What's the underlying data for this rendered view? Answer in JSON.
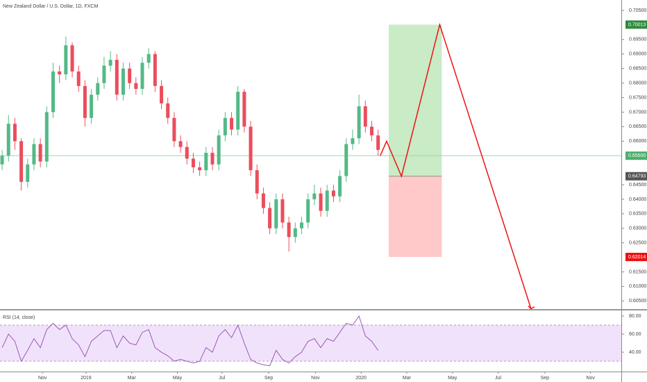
{
  "chart_data": [
    {
      "type": "candlestick",
      "title": "New Zealand Dollar / U.S. Dollar, 1D, FXCM",
      "x": [
        2,
        8,
        14,
        20,
        26,
        32,
        38,
        44,
        50,
        56,
        62,
        68,
        74,
        80,
        86,
        92,
        98,
        104,
        110,
        116,
        122,
        128,
        134,
        140,
        146,
        152,
        158,
        164,
        170,
        176,
        182,
        188,
        194,
        200,
        206,
        212,
        218,
        224,
        230,
        236,
        242,
        248,
        254,
        260,
        266,
        272,
        278,
        284,
        290,
        296,
        302,
        308,
        314,
        320,
        326,
        332,
        338,
        344,
        350,
        356
      ],
      "open": [
        0.652,
        0.655,
        0.666,
        0.66,
        0.646,
        0.652,
        0.659,
        0.653,
        0.67,
        0.684,
        0.683,
        0.693,
        0.684,
        0.679,
        0.668,
        0.676,
        0.68,
        0.686,
        0.688,
        0.676,
        0.685,
        0.68,
        0.678,
        0.687,
        0.69,
        0.679,
        0.673,
        0.668,
        0.66,
        0.658,
        0.654,
        0.651,
        0.65,
        0.656,
        0.652,
        0.662,
        0.668,
        0.664,
        0.677,
        0.665,
        0.65,
        0.642,
        0.637,
        0.63,
        0.64,
        0.632,
        0.627,
        0.63,
        0.632,
        0.64,
        0.642,
        0.636,
        0.643,
        0.641,
        0.648,
        0.659,
        0.661,
        0.672,
        0.665,
        0.662
      ],
      "high": [
        0.657,
        0.669,
        0.668,
        0.661,
        0.654,
        0.661,
        0.661,
        0.672,
        0.687,
        0.686,
        0.696,
        0.694,
        0.686,
        0.681,
        0.678,
        0.682,
        0.689,
        0.691,
        0.69,
        0.687,
        0.687,
        0.682,
        0.689,
        0.692,
        0.691,
        0.681,
        0.675,
        0.67,
        0.662,
        0.66,
        0.656,
        0.653,
        0.658,
        0.658,
        0.664,
        0.67,
        0.67,
        0.679,
        0.678,
        0.667,
        0.652,
        0.644,
        0.639,
        0.642,
        0.642,
        0.634,
        0.632,
        0.634,
        0.642,
        0.645,
        0.644,
        0.645,
        0.645,
        0.65,
        0.661,
        0.664,
        0.676,
        0.674,
        0.667,
        0.664
      ],
      "low": [
        0.65,
        0.653,
        0.657,
        0.643,
        0.644,
        0.65,
        0.651,
        0.651,
        0.668,
        0.68,
        0.681,
        0.682,
        0.677,
        0.665,
        0.666,
        0.674,
        0.678,
        0.684,
        0.674,
        0.674,
        0.678,
        0.676,
        0.676,
        0.685,
        0.677,
        0.671,
        0.666,
        0.658,
        0.656,
        0.652,
        0.649,
        0.648,
        0.648,
        0.65,
        0.65,
        0.66,
        0.662,
        0.662,
        0.663,
        0.648,
        0.64,
        0.635,
        0.628,
        0.628,
        0.63,
        0.622,
        0.625,
        0.628,
        0.63,
        0.638,
        0.634,
        0.634,
        0.639,
        0.639,
        0.646,
        0.657,
        0.659,
        0.663,
        0.66,
        0.655
      ],
      "close": [
        0.655,
        0.666,
        0.66,
        0.646,
        0.652,
        0.659,
        0.653,
        0.67,
        0.684,
        0.683,
        0.693,
        0.684,
        0.679,
        0.668,
        0.676,
        0.68,
        0.686,
        0.688,
        0.676,
        0.685,
        0.68,
        0.678,
        0.687,
        0.69,
        0.679,
        0.673,
        0.668,
        0.66,
        0.658,
        0.654,
        0.651,
        0.65,
        0.656,
        0.652,
        0.662,
        0.668,
        0.664,
        0.677,
        0.665,
        0.65,
        0.642,
        0.637,
        0.63,
        0.64,
        0.632,
        0.627,
        0.63,
        0.632,
        0.64,
        0.642,
        0.636,
        0.643,
        0.641,
        0.648,
        0.659,
        0.661,
        0.672,
        0.665,
        0.662,
        0.657
      ],
      "up_color": "#53b987",
      "down_color": "#eb4d5c",
      "xlim": [
        0,
        585
      ],
      "xticks": [
        {
          "value": 40,
          "label": "Nov"
        },
        {
          "value": 81,
          "label": "2019"
        },
        {
          "value": 124,
          "label": "Mar"
        },
        {
          "value": 167,
          "label": "May"
        },
        {
          "value": 209,
          "label": "Jul"
        },
        {
          "value": 253,
          "label": "Sep"
        },
        {
          "value": 297,
          "label": "Nov"
        },
        {
          "value": 340,
          "label": "2020"
        },
        {
          "value": 383,
          "label": "Mar"
        },
        {
          "value": 426,
          "label": "May"
        },
        {
          "value": 469,
          "label": "Jul"
        },
        {
          "value": 513,
          "label": "Sep"
        },
        {
          "value": 556,
          "label": "Nov"
        }
      ],
      "ylim": [
        0.6022,
        0.7086
      ],
      "yticks": [
        {
          "value": 0.705,
          "label": "0.70500"
        },
        {
          "value": 0.695,
          "label": "0.69500"
        },
        {
          "value": 0.69,
          "label": "0.69000"
        },
        {
          "value": 0.685,
          "label": "0.68500"
        },
        {
          "value": 0.68,
          "label": "0.68000"
        },
        {
          "value": 0.675,
          "label": "0.67500"
        },
        {
          "value": 0.67,
          "label": "0.67000"
        },
        {
          "value": 0.665,
          "label": "0.66500"
        },
        {
          "value": 0.66,
          "label": "0.66000"
        },
        {
          "value": 0.645,
          "label": "0.64500"
        },
        {
          "value": 0.64,
          "label": "0.64000"
        },
        {
          "value": 0.635,
          "label": "0.63500"
        },
        {
          "value": 0.63,
          "label": "0.63000"
        },
        {
          "value": 0.625,
          "label": "0.62500"
        },
        {
          "value": 0.615,
          "label": "0.61500"
        },
        {
          "value": 0.61,
          "label": "0.61000"
        },
        {
          "value": 0.605,
          "label": "0.60500"
        }
      ],
      "price_labels": [
        {
          "value": 0.70013,
          "label": "0.70013",
          "color": "#2e8b3e"
        },
        {
          "value": 0.655,
          "label": "0.65500",
          "color": "#4caf6a"
        },
        {
          "value": 0.64793,
          "label": "0.64793",
          "color": "#555555"
        },
        {
          "value": 0.62014,
          "label": "0.62014",
          "color": "#ee1111"
        }
      ],
      "hline": {
        "value": 0.655,
        "color": "#9ed6aa"
      },
      "position": {
        "x": [
          366,
          416
        ],
        "target": 0.70013,
        "entry": 0.64793,
        "stop": 0.62014,
        "profit_color": "#c9ebc6",
        "loss_color": "#ffc9c9"
      },
      "projection": {
        "x": [
          358,
          364,
          378,
          414,
          500
        ],
        "y": [
          0.655,
          0.66,
          0.6479,
          0.70013,
          0.6023
        ],
        "color": "#ee1111"
      }
    },
    {
      "type": "line",
      "title": "RSI (14, close)",
      "values": [
        45,
        60,
        52,
        30,
        42,
        55,
        45,
        65,
        72,
        65,
        70,
        55,
        48,
        35,
        52,
        58,
        64,
        64,
        45,
        58,
        50,
        48,
        62,
        65,
        45,
        40,
        36,
        30,
        32,
        30,
        28,
        30,
        45,
        40,
        58,
        65,
        56,
        70,
        50,
        32,
        28,
        26,
        25,
        42,
        32,
        28,
        35,
        40,
        52,
        55,
        45,
        55,
        52,
        62,
        72,
        70,
        80,
        58,
        52,
        42
      ],
      "color": "#9b59b6",
      "ylim": [
        18.5,
        86.2
      ],
      "yticks": [
        {
          "value": 80,
          "label": "80.00"
        },
        {
          "value": 60,
          "label": "60.00"
        },
        {
          "value": 40,
          "label": "40.00"
        }
      ],
      "bands": [
        30,
        70
      ],
      "band_color": "#f1e2fb"
    }
  ]
}
